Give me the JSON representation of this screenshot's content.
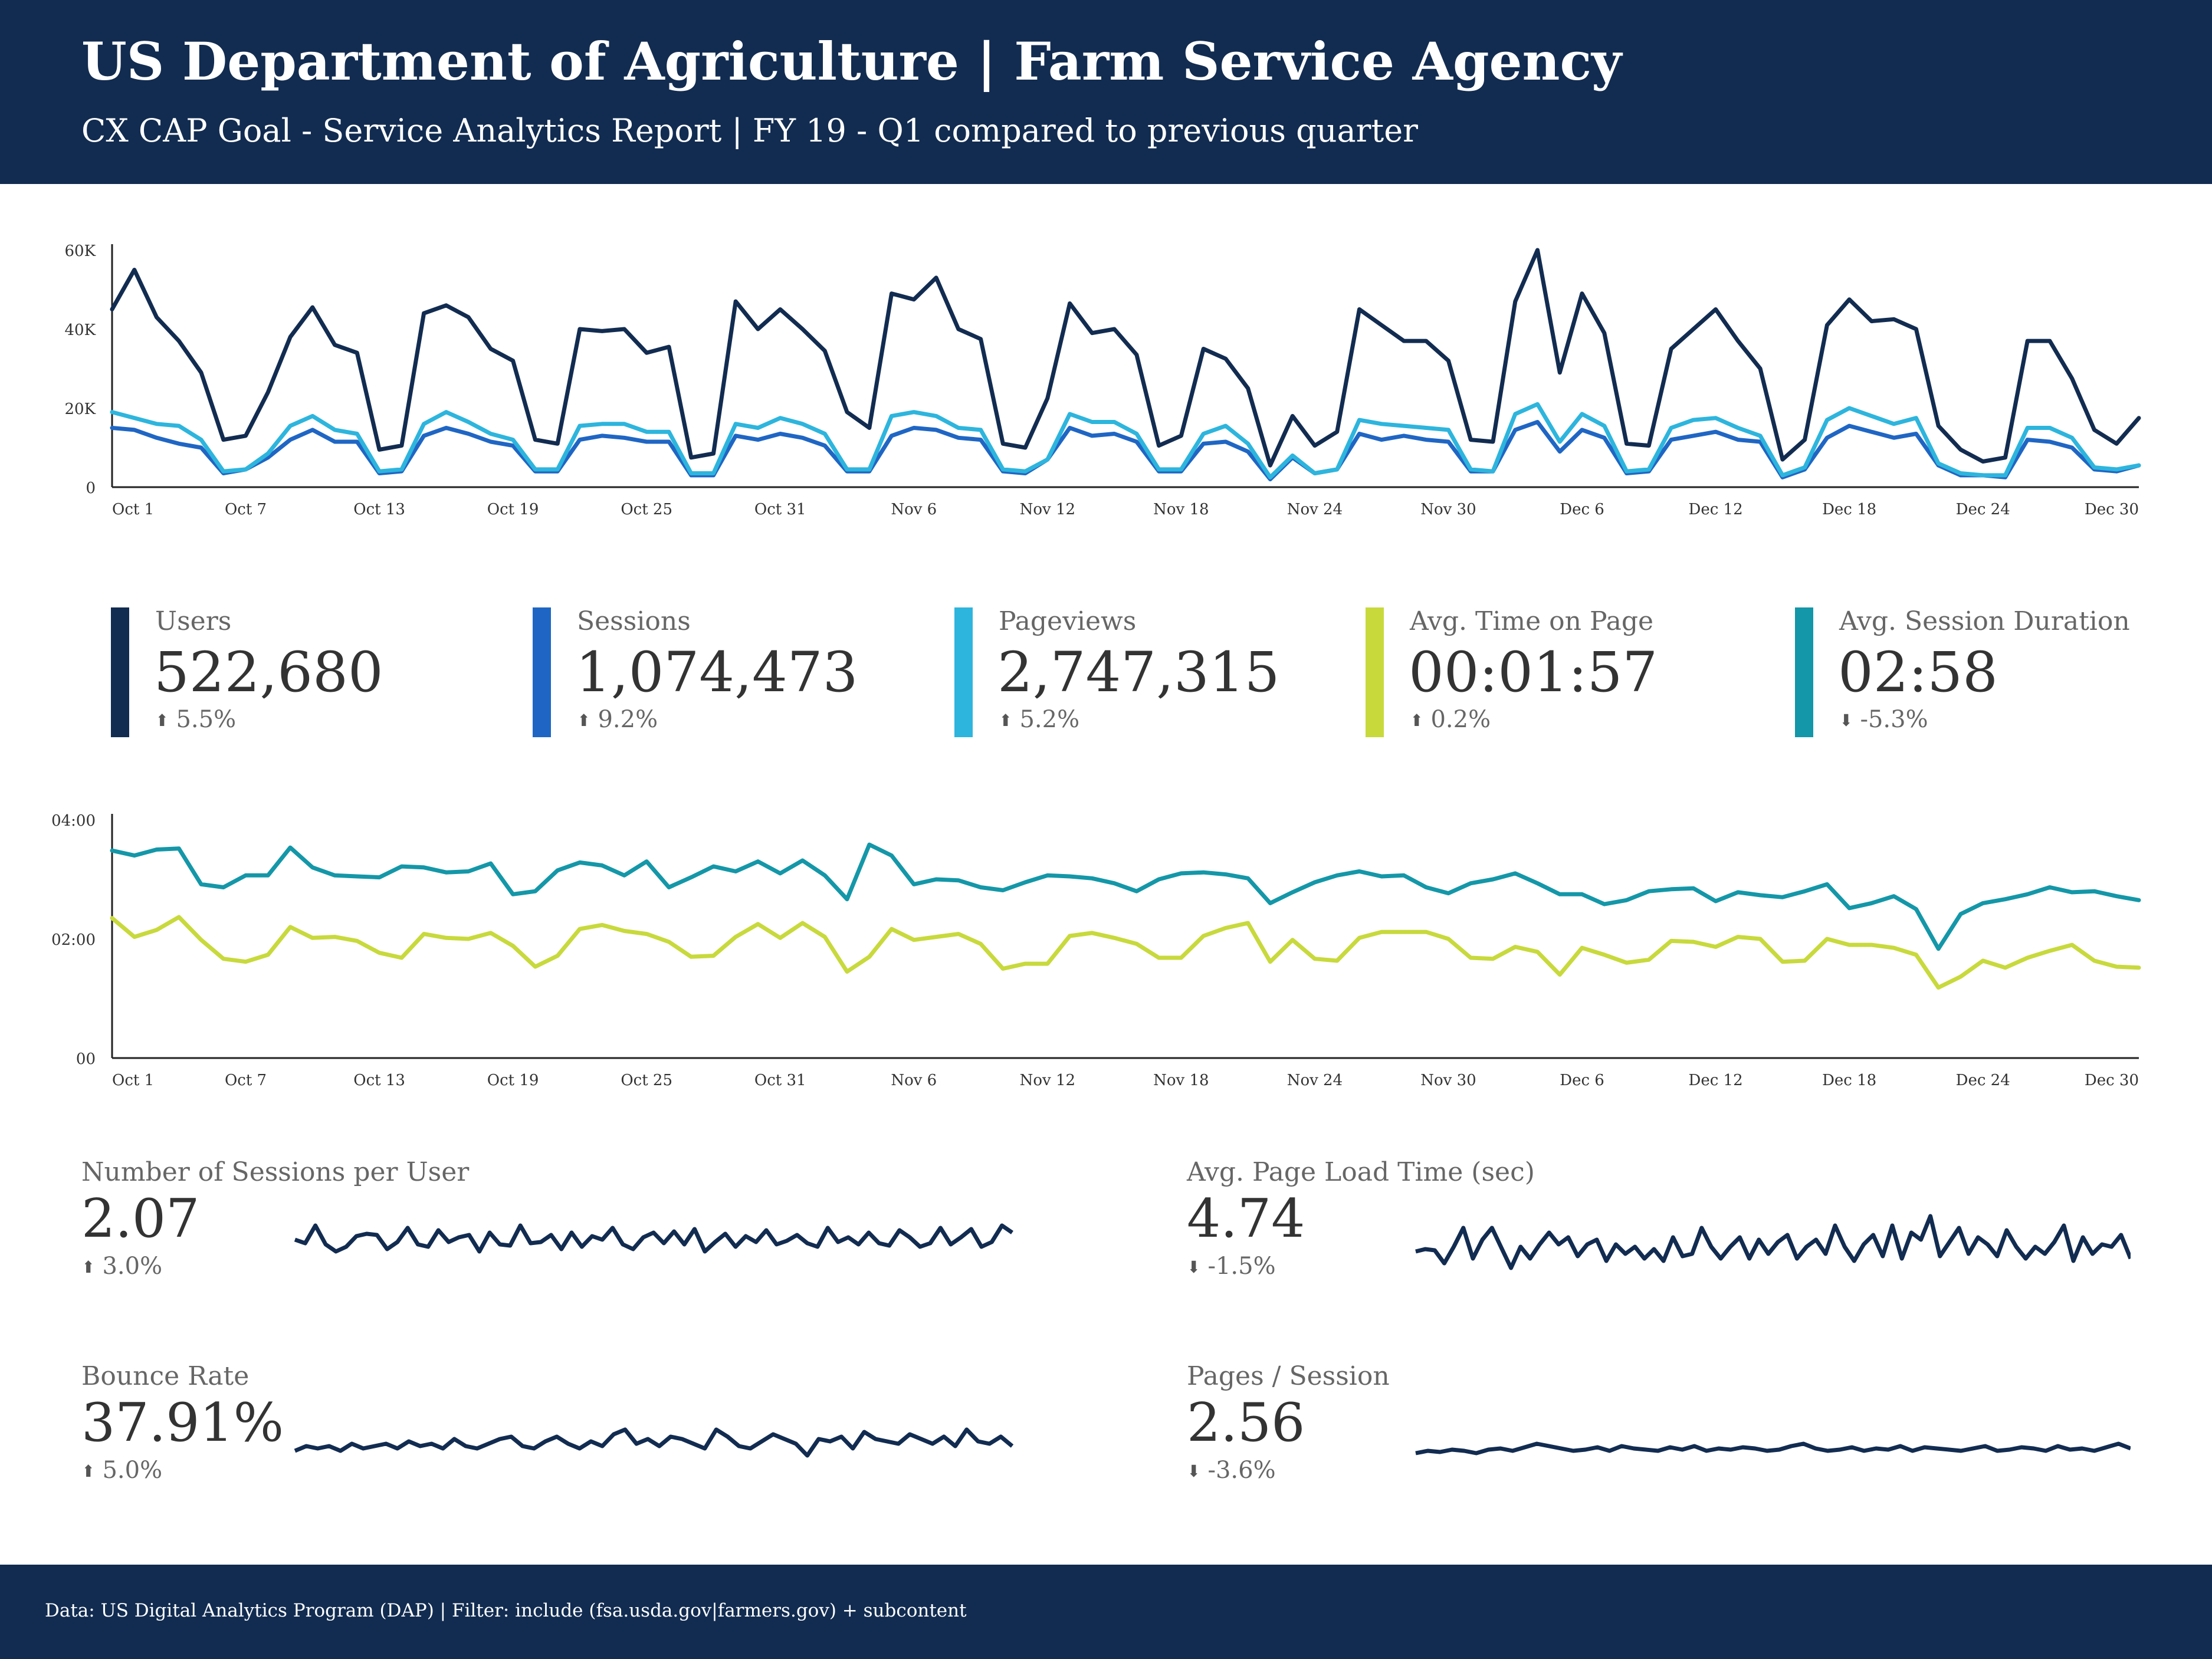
{
  "header": {
    "title": "US Department of Agriculture | Farm Service Agency",
    "subtitle": "CX CAP Goal - Service Analytics Report | FY 19 - Q1 compared to previous quarter"
  },
  "footer": {
    "text": "Data: US Digital Analytics Program (DAP) | Filter: include (fsa.usda.gov|farmers.gov) + subcontent"
  },
  "kpis": [
    {
      "label": "Users",
      "value": "522,680",
      "delta": "5.5%",
      "direction": "up",
      "color": "#122c51"
    },
    {
      "label": "Sessions",
      "value": "1,074,473",
      "delta": "9.2%",
      "direction": "up",
      "color": "#1f66c4"
    },
    {
      "label": "Pageviews",
      "value": "2,747,315",
      "delta": "5.2%",
      "direction": "up",
      "color": "#2db5dd"
    },
    {
      "label": "Avg. Time on Page",
      "value": "00:01:57",
      "delta": "0.2%",
      "direction": "up",
      "color": "#c8d93c"
    },
    {
      "label": "Avg. Session Duration",
      "value": "02:58",
      "delta": "-5.3%",
      "direction": "down",
      "color": "#1497a8"
    }
  ],
  "sparks": [
    {
      "label": "Number of Sessions per User",
      "value": "2.07",
      "delta": "3.0%",
      "direction": "up"
    },
    {
      "label": "Avg. Page Load Time (sec)",
      "value": "4.74",
      "delta": "-1.5%",
      "direction": "down"
    },
    {
      "label": "Bounce Rate",
      "value": "37.91%",
      "delta": "5.0%",
      "direction": "up"
    },
    {
      "label": "Pages / Session",
      "value": "2.56",
      "delta": "-3.6%",
      "direction": "down"
    }
  ],
  "icons": {
    "up": "arrow-up-icon",
    "down": "arrow-down-icon"
  },
  "chart_data": [
    {
      "type": "line",
      "title": "",
      "x_tick_labels": [
        "Oct 1",
        "Oct 7",
        "Oct 13",
        "Oct 19",
        "Oct 25",
        "Oct 31",
        "Nov 6",
        "Nov 12",
        "Nov 18",
        "Nov 24",
        "Nov 30",
        "Dec 6",
        "Dec 12",
        "Dec 18",
        "Dec 24",
        "Dec 30"
      ],
      "y_tick_labels": [
        "0",
        "20K",
        "40K",
        "60K"
      ],
      "ylim": [
        0,
        60000
      ],
      "x_start": "Oct 1",
      "x_end": "Dec 31",
      "series": [
        {
          "color": "#122c51",
          "values": [
            45000,
            55000,
            43000,
            37000,
            29000,
            12000,
            13000,
            24000,
            38000,
            45500,
            36000,
            34000,
            9500,
            10500,
            44000,
            46000,
            43000,
            35000,
            32000,
            12000,
            11000,
            40000,
            39500,
            40000,
            34000,
            35500,
            7500,
            8500,
            47000,
            40000,
            45000,
            40000,
            34500,
            19000,
            15000,
            49000,
            47500,
            53000,
            40000,
            37500,
            11000,
            10000,
            22500,
            46500,
            39000,
            40000,
            33500,
            10500,
            13000,
            35000,
            32500,
            25000,
            5500,
            18000,
            10500,
            14000,
            45000,
            41000,
            37000,
            37000,
            32000,
            12000,
            11500,
            47000,
            60000,
            29000,
            49000,
            39000,
            11000,
            10500,
            35000,
            40000,
            45000,
            37000,
            30000,
            7000,
            12000,
            41000,
            47500,
            42000,
            42500,
            40000,
            15500,
            9500,
            6500,
            7500,
            37000,
            37000,
            27500,
            14500,
            11000,
            17500
          ]
        },
        {
          "color": "#1f66c4",
          "values": [
            15000,
            14500,
            12500,
            11000,
            10000,
            3500,
            4500,
            7500,
            12000,
            14500,
            11500,
            11500,
            3500,
            4000,
            13000,
            15000,
            13500,
            11500,
            10500,
            4000,
            4000,
            12000,
            13000,
            12500,
            11500,
            11500,
            3000,
            3000,
            13000,
            12000,
            13500,
            12500,
            10500,
            4000,
            4000,
            13000,
            15000,
            14500,
            12500,
            12000,
            4000,
            3500,
            7000,
            15000,
            13000,
            13500,
            11500,
            4000,
            4000,
            11000,
            11500,
            9000,
            2000,
            7500,
            3500,
            4500,
            13500,
            12000,
            13000,
            12000,
            11500,
            4000,
            4000,
            14500,
            16500,
            9000,
            14500,
            12500,
            3500,
            4000,
            12000,
            13000,
            14000,
            12000,
            11500,
            2500,
            4500,
            12500,
            15500,
            14000,
            12500,
            13500,
            5500,
            3000,
            3000,
            2500,
            12000,
            11500,
            10000,
            4500,
            4000,
            5500
          ]
        },
        {
          "color": "#2db5dd",
          "values": [
            19000,
            17500,
            16000,
            15500,
            12000,
            4000,
            4500,
            8500,
            15500,
            18000,
            14500,
            13500,
            4000,
            4500,
            16000,
            19000,
            16500,
            13500,
            12000,
            4500,
            4500,
            15500,
            16000,
            16000,
            14000,
            14000,
            3500,
            3500,
            16000,
            15000,
            17500,
            16000,
            13500,
            4500,
            4500,
            18000,
            19000,
            18000,
            15000,
            14500,
            4500,
            4000,
            7000,
            18500,
            16500,
            16500,
            13500,
            4500,
            4500,
            13500,
            15500,
            11000,
            2500,
            8000,
            3500,
            4500,
            17000,
            16000,
            15500,
            15000,
            14500,
            4500,
            4000,
            18500,
            21000,
            11500,
            18500,
            15500,
            4000,
            4500,
            15000,
            17000,
            17500,
            15000,
            13000,
            3000,
            5000,
            17000,
            20000,
            18000,
            16000,
            17500,
            6000,
            3500,
            3000,
            3000,
            15000,
            15000,
            12500,
            5000,
            4500,
            5500
          ]
        }
      ]
    },
    {
      "type": "line",
      "title": "",
      "x_tick_labels": [
        "Oct 1",
        "Oct 7",
        "Oct 13",
        "Oct 19",
        "Oct 25",
        "Oct 31",
        "Nov 6",
        "Nov 12",
        "Nov 18",
        "Nov 24",
        "Nov 30",
        "Dec 6",
        "Dec 12",
        "Dec 18",
        "Dec 24",
        "Dec 30"
      ],
      "y_tick_labels": [
        "00",
        "02:00",
        "04:00"
      ],
      "ylim": [
        0,
        240
      ],
      "series": [
        {
          "color": "#1497a8",
          "values": [
            209,
            204,
            210,
            211,
            175,
            172,
            184,
            184,
            212,
            192,
            184,
            183,
            182,
            193,
            192,
            187,
            188,
            196,
            165,
            168,
            189,
            197,
            194,
            184,
            198,
            172,
            182,
            193,
            188,
            198,
            186,
            199,
            184,
            160,
            215,
            204,
            175,
            180,
            179,
            172,
            169,
            177,
            184,
            183,
            181,
            176,
            168,
            180,
            186,
            187,
            185,
            181,
            156,
            167,
            177,
            184,
            188,
            183,
            184,
            172,
            166,
            176,
            180,
            186,
            176,
            165,
            165,
            155,
            159,
            168,
            170,
            171,
            158,
            167,
            164,
            162,
            168,
            175,
            151,
            156,
            163,
            150,
            110,
            145,
            156,
            160,
            165,
            172,
            167,
            168,
            163,
            159
          ]
        },
        {
          "color": "#c8d93c",
          "values": [
            141,
            122,
            129,
            142,
            119,
            100,
            97,
            104,
            132,
            121,
            122,
            118,
            106,
            101,
            125,
            121,
            120,
            126,
            113,
            92,
            103,
            130,
            134,
            128,
            125,
            117,
            102,
            103,
            122,
            135,
            121,
            136,
            122,
            87,
            102,
            130,
            119,
            122,
            125,
            115,
            90,
            95,
            95,
            123,
            126,
            121,
            115,
            101,
            101,
            123,
            131,
            136,
            97,
            119,
            100,
            98,
            121,
            127,
            127,
            127,
            120,
            101,
            100,
            112,
            107,
            84,
            111,
            104,
            96,
            99,
            118,
            117,
            112,
            122,
            120,
            97,
            98,
            120,
            114,
            114,
            111,
            104,
            71,
            82,
            98,
            91,
            101,
            108,
            114,
            98,
            92,
            91
          ]
        }
      ]
    }
  ]
}
